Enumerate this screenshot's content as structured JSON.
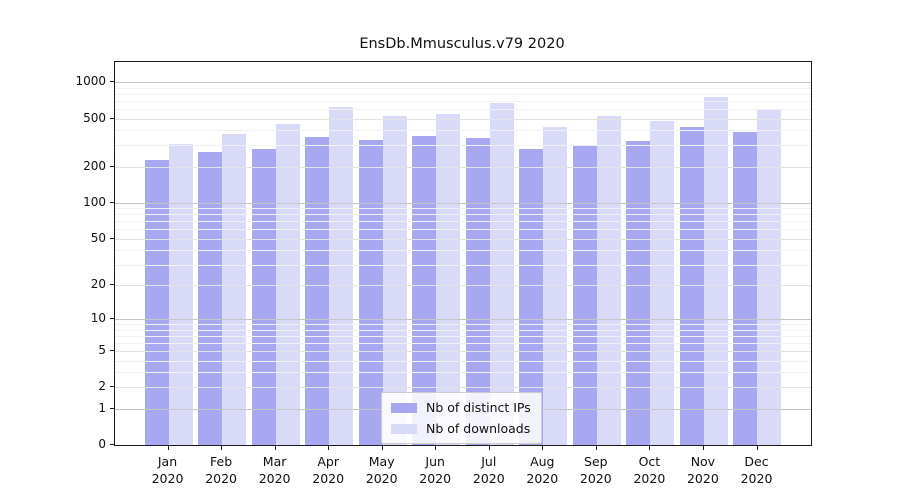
{
  "chart_data": {
    "type": "bar",
    "title": "EnsDb.Mmusculus.v79 2020",
    "categories": [
      "Jan",
      "Feb",
      "Mar",
      "Apr",
      "May",
      "Jun",
      "Jul",
      "Aug",
      "Sep",
      "Oct",
      "Nov",
      "Dec"
    ],
    "x_year_label": "2020",
    "series": [
      {
        "name": "Nb of distinct IPs",
        "color": "#a7a7f2",
        "values": [
          225,
          264,
          278,
          352,
          331,
          356,
          343,
          281,
          300,
          326,
          426,
          387
        ]
      },
      {
        "name": "Nb of downloads",
        "color": "#d9d9f8",
        "values": [
          310,
          375,
          455,
          624,
          526,
          546,
          678,
          426,
          526,
          480,
          756,
          585
        ]
      }
    ],
    "yscale": "log1p",
    "yticks": [
      0,
      1,
      2,
      5,
      10,
      20,
      50,
      100,
      200,
      500,
      1000
    ],
    "ylim": [
      0,
      1470
    ],
    "grid": "on",
    "legend_position": "lower-center-inside"
  },
  "legend": {
    "items": [
      {
        "label": "Nb of distinct IPs"
      },
      {
        "label": "Nb of downloads"
      }
    ]
  }
}
